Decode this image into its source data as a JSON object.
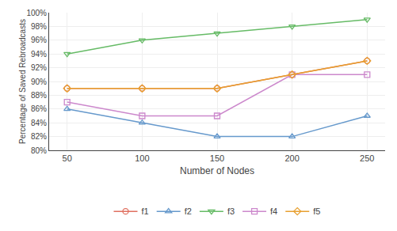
{
  "chart_data": {
    "type": "line",
    "xlabel": "Number of Nodes",
    "ylabel": "Percentage of Saved Rebroadcasts",
    "x": [
      50,
      100,
      150,
      200,
      250
    ],
    "series": [
      {
        "name": "f1",
        "color": "#e07060",
        "marker": "circle",
        "line_style": "solid",
        "values": [
          89,
          89,
          89,
          91,
          93
        ]
      },
      {
        "name": "f2",
        "color": "#6699cc",
        "marker": "triangle-up",
        "line_style": "solid",
        "values": [
          86,
          84,
          82,
          82,
          85
        ]
      },
      {
        "name": "f3",
        "color": "#66bb66",
        "marker": "triangle-down",
        "line_style": "solid",
        "values": [
          94,
          96,
          97,
          98,
          99
        ]
      },
      {
        "name": "f4",
        "color": "#cc88cc",
        "marker": "square",
        "line_style": "solid",
        "values": [
          87,
          85,
          85,
          91,
          91
        ]
      },
      {
        "name": "f5",
        "color": "#e8a030",
        "marker": "diamond",
        "line_style": "solid",
        "values": [
          89,
          89,
          89,
          91,
          93
        ]
      }
    ],
    "xlim": [
      38,
      262
    ],
    "xticks": [
      50,
      100,
      150,
      200,
      250
    ],
    "ylim": [
      80,
      100
    ],
    "yticks": [
      {
        "value": 80,
        "label": "80%"
      },
      {
        "value": 82,
        "label": "82%"
      },
      {
        "value": 84,
        "label": "84%"
      },
      {
        "value": 86,
        "label": "86%"
      },
      {
        "value": 88,
        "label": "88%"
      },
      {
        "value": 90,
        "label": "90%"
      },
      {
        "value": 92,
        "label": "92%"
      },
      {
        "value": 94,
        "label": "94%"
      },
      {
        "value": 96,
        "label": "96%"
      },
      {
        "value": 98,
        "label": "98%"
      },
      {
        "value": 100,
        "label": "100%"
      }
    ],
    "grid": true,
    "legend": "bottom"
  }
}
